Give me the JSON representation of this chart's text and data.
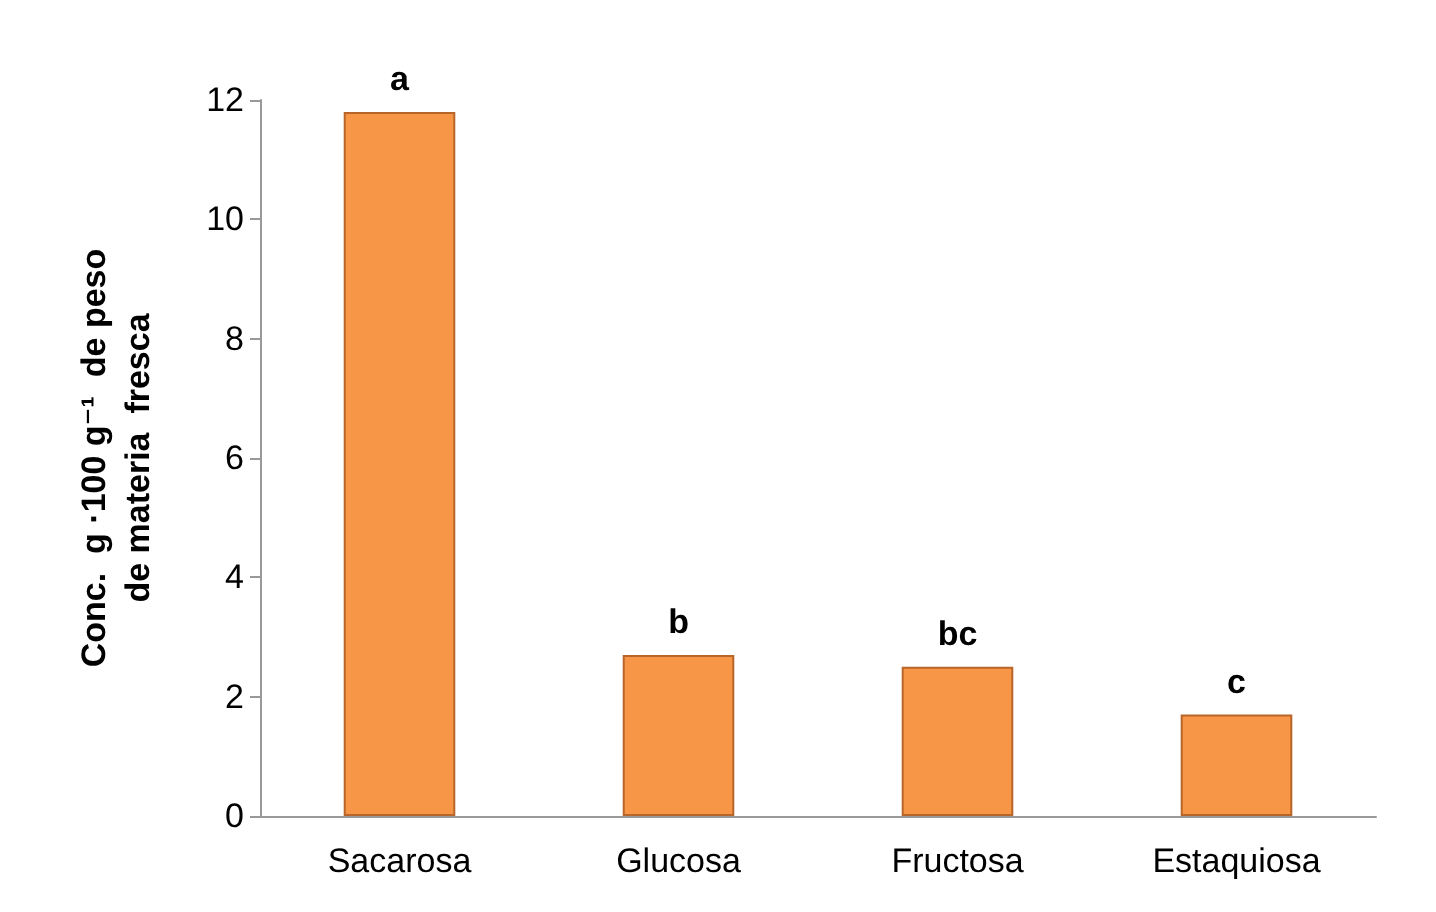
{
  "chart_data": {
    "type": "bar",
    "ylabel": "Conc.  g ·100 g⁻¹  de peso de materia  fresca",
    "categories": [
      "Sacarosa",
      "Glucosa",
      "Fructosa",
      "Estaquiosa"
    ],
    "values": [
      11.8,
      2.7,
      2.5,
      1.7
    ],
    "color": "#f79646",
    "ylim": [
      0,
      12
    ],
    "yticks": [
      0,
      2,
      4,
      6,
      8,
      10,
      12
    ],
    "grid": false,
    "annotations": [
      {
        "text": "a",
        "x": "Sacarosa",
        "y": 11.8
      },
      {
        "text": "b",
        "x": "Glucosa",
        "y": 2.7
      },
      {
        "text": "bc",
        "x": "Fructosa",
        "y": 2.5
      },
      {
        "text": "c",
        "x": "Estaquiosa",
        "y": 1.7
      }
    ]
  }
}
